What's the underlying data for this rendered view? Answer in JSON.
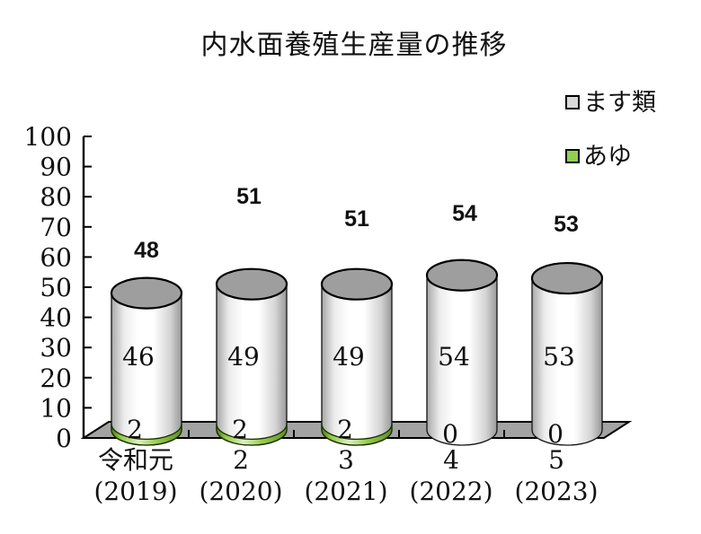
{
  "title": "内水面養殖生産量の推移",
  "legend": {
    "items": [
      {
        "label": "ます類",
        "color": "#d9d9d9"
      },
      {
        "label": "あゆ",
        "color": "#92d050"
      }
    ]
  },
  "axes": {
    "y": {
      "min": 0,
      "max": 100,
      "step": 10
    },
    "x": {
      "categories": [
        {
          "era": "令和元",
          "year": "(2019)"
        },
        {
          "era": "2",
          "year": "(2020)"
        },
        {
          "era": "3",
          "year": "(2021)"
        },
        {
          "era": "4",
          "year": "(2022)"
        },
        {
          "era": "5",
          "year": "(2023)"
        }
      ]
    }
  },
  "chart_data": {
    "type": "bar",
    "subtype": "3d-cylinder-stacked",
    "title": "内水面養殖生産量の推移",
    "categories": [
      "令和元 (2019)",
      "2 (2020)",
      "3 (2021)",
      "4 (2022)",
      "5 (2023)"
    ],
    "series": [
      {
        "name": "あゆ",
        "color": "#92d050",
        "values": [
          2,
          2,
          2,
          0,
          0
        ]
      },
      {
        "name": "ます類",
        "color": "#d9d9d9",
        "values": [
          46,
          49,
          49,
          54,
          53
        ]
      }
    ],
    "totals": [
      48,
      51,
      51,
      54,
      53
    ],
    "xlabel": "",
    "ylabel": "",
    "ylim": [
      0,
      100
    ],
    "ytick_step": 10,
    "grid": false,
    "legend_position": "top-right"
  },
  "colors": {
    "text": "#111111",
    "floor": "#a3a3a3",
    "cylinder_top": "#9e9e9e",
    "ayu_green": "#92d050",
    "masu_gray": "#d9d9d9",
    "outline": "#000000"
  }
}
